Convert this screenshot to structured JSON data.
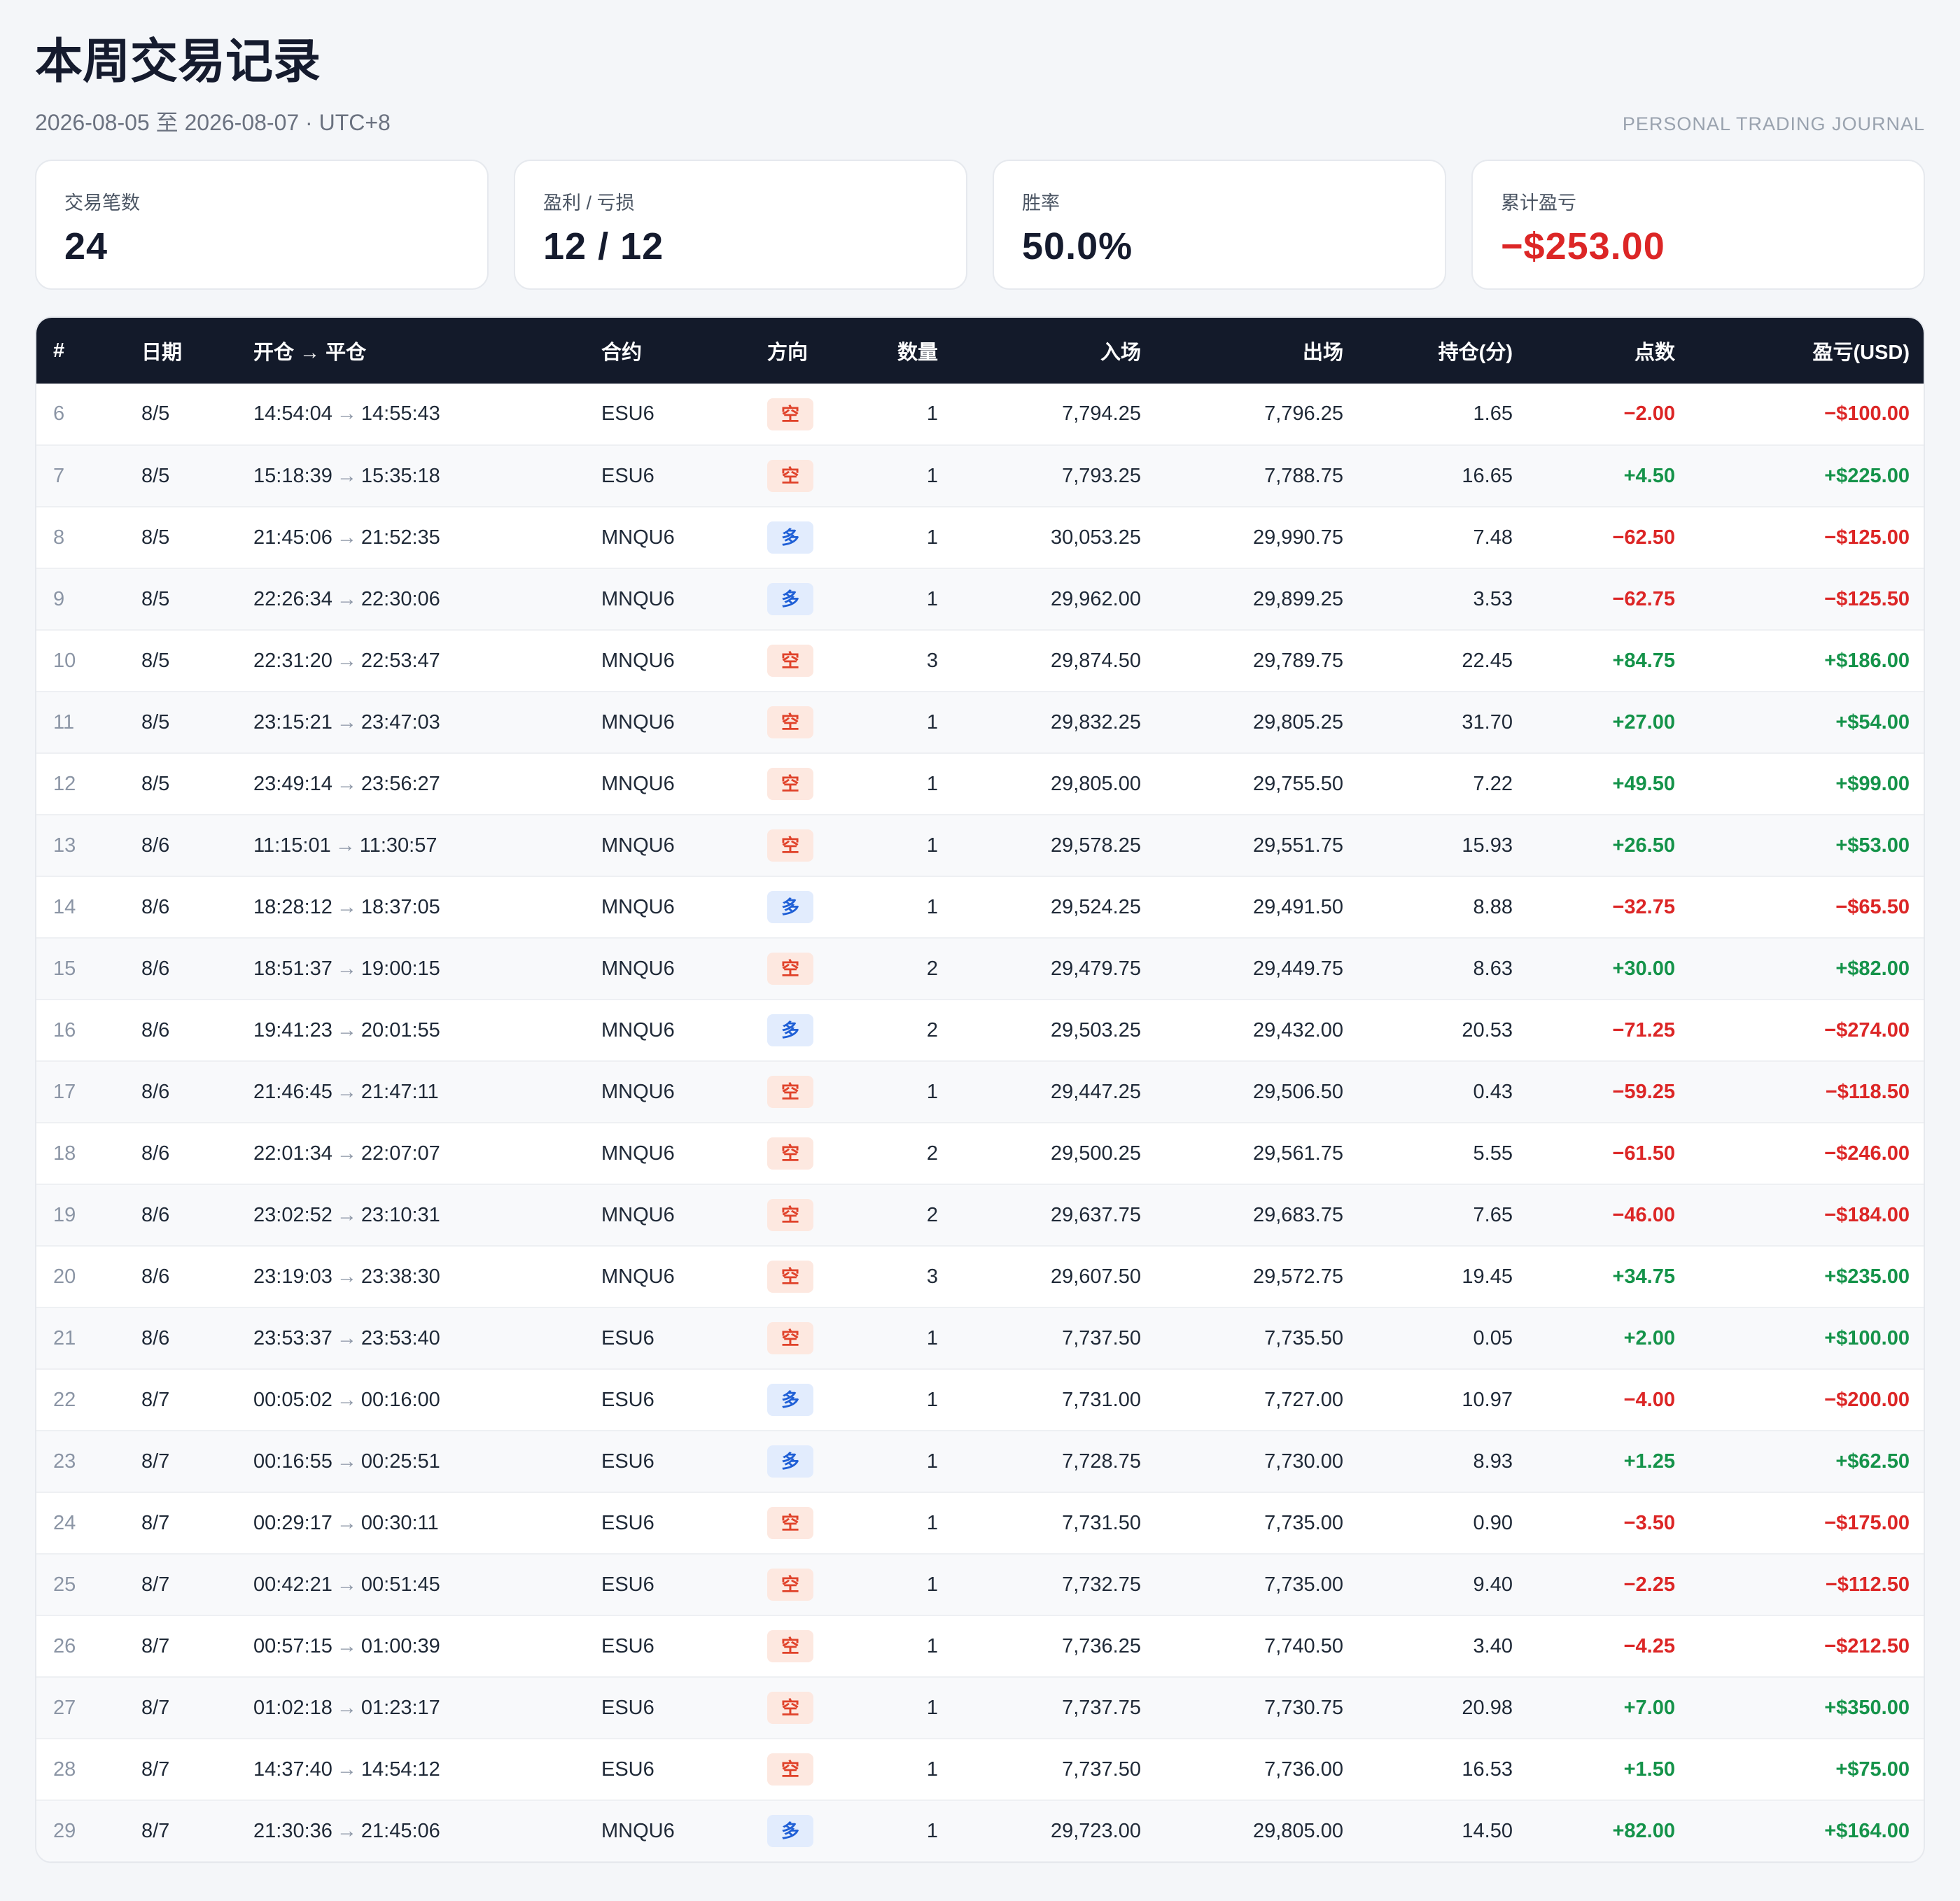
{
  "header": {
    "title": "本周交易记录",
    "subtitle": "2026-08-05 至 2026-08-07 · UTC+8",
    "brand": "PERSONAL TRADING JOURNAL"
  },
  "stats": [
    {
      "label": "交易笔数",
      "value": "24"
    },
    {
      "label": "盈利 / 亏损",
      "value": "12 / 12"
    },
    {
      "label": "胜率",
      "value": "50.0%"
    },
    {
      "label": "累计盈亏",
      "value": "−$253.00"
    }
  ],
  "colors": {
    "positive": "#15934a",
    "negative": "#dc2626",
    "header_bg": "#131a2a"
  },
  "table": {
    "columns": [
      "#",
      "日期",
      "开仓 → 平仓",
      "合约",
      "方向",
      "数量",
      "入场",
      "出场",
      "持仓(分)",
      "点数",
      "盈亏(USD)"
    ],
    "arrow": "→",
    "rows": [
      {
        "id": "6",
        "date": "8/5",
        "open": "14:54:04",
        "close": "14:55:43",
        "symbol": "ESU6",
        "side": "空",
        "qty": "1",
        "entry": "7,794.25",
        "exit": "7,796.25",
        "hold": "1.65",
        "points": "−2.00",
        "pnl": "−$100.00"
      },
      {
        "id": "7",
        "date": "8/5",
        "open": "15:18:39",
        "close": "15:35:18",
        "symbol": "ESU6",
        "side": "空",
        "qty": "1",
        "entry": "7,793.25",
        "exit": "7,788.75",
        "hold": "16.65",
        "points": "+4.50",
        "pnl": "+$225.00"
      },
      {
        "id": "8",
        "date": "8/5",
        "open": "21:45:06",
        "close": "21:52:35",
        "symbol": "MNQU6",
        "side": "多",
        "qty": "1",
        "entry": "30,053.25",
        "exit": "29,990.75",
        "hold": "7.48",
        "points": "−62.50",
        "pnl": "−$125.00"
      },
      {
        "id": "9",
        "date": "8/5",
        "open": "22:26:34",
        "close": "22:30:06",
        "symbol": "MNQU6",
        "side": "多",
        "qty": "1",
        "entry": "29,962.00",
        "exit": "29,899.25",
        "hold": "3.53",
        "points": "−62.75",
        "pnl": "−$125.50"
      },
      {
        "id": "10",
        "date": "8/5",
        "open": "22:31:20",
        "close": "22:53:47",
        "symbol": "MNQU6",
        "side": "空",
        "qty": "3",
        "entry": "29,874.50",
        "exit": "29,789.75",
        "hold": "22.45",
        "points": "+84.75",
        "pnl": "+$186.00"
      },
      {
        "id": "11",
        "date": "8/5",
        "open": "23:15:21",
        "close": "23:47:03",
        "symbol": "MNQU6",
        "side": "空",
        "qty": "1",
        "entry": "29,832.25",
        "exit": "29,805.25",
        "hold": "31.70",
        "points": "+27.00",
        "pnl": "+$54.00"
      },
      {
        "id": "12",
        "date": "8/5",
        "open": "23:49:14",
        "close": "23:56:27",
        "symbol": "MNQU6",
        "side": "空",
        "qty": "1",
        "entry": "29,805.00",
        "exit": "29,755.50",
        "hold": "7.22",
        "points": "+49.50",
        "pnl": "+$99.00"
      },
      {
        "id": "13",
        "date": "8/6",
        "open": "11:15:01",
        "close": "11:30:57",
        "symbol": "MNQU6",
        "side": "空",
        "qty": "1",
        "entry": "29,578.25",
        "exit": "29,551.75",
        "hold": "15.93",
        "points": "+26.50",
        "pnl": "+$53.00"
      },
      {
        "id": "14",
        "date": "8/6",
        "open": "18:28:12",
        "close": "18:37:05",
        "symbol": "MNQU6",
        "side": "多",
        "qty": "1",
        "entry": "29,524.25",
        "exit": "29,491.50",
        "hold": "8.88",
        "points": "−32.75",
        "pnl": "−$65.50"
      },
      {
        "id": "15",
        "date": "8/6",
        "open": "18:51:37",
        "close": "19:00:15",
        "symbol": "MNQU6",
        "side": "空",
        "qty": "2",
        "entry": "29,479.75",
        "exit": "29,449.75",
        "hold": "8.63",
        "points": "+30.00",
        "pnl": "+$82.00"
      },
      {
        "id": "16",
        "date": "8/6",
        "open": "19:41:23",
        "close": "20:01:55",
        "symbol": "MNQU6",
        "side": "多",
        "qty": "2",
        "entry": "29,503.25",
        "exit": "29,432.00",
        "hold": "20.53",
        "points": "−71.25",
        "pnl": "−$274.00"
      },
      {
        "id": "17",
        "date": "8/6",
        "open": "21:46:45",
        "close": "21:47:11",
        "symbol": "MNQU6",
        "side": "空",
        "qty": "1",
        "entry": "29,447.25",
        "exit": "29,506.50",
        "hold": "0.43",
        "points": "−59.25",
        "pnl": "−$118.50"
      },
      {
        "id": "18",
        "date": "8/6",
        "open": "22:01:34",
        "close": "22:07:07",
        "symbol": "MNQU6",
        "side": "空",
        "qty": "2",
        "entry": "29,500.25",
        "exit": "29,561.75",
        "hold": "5.55",
        "points": "−61.50",
        "pnl": "−$246.00"
      },
      {
        "id": "19",
        "date": "8/6",
        "open": "23:02:52",
        "close": "23:10:31",
        "symbol": "MNQU6",
        "side": "空",
        "qty": "2",
        "entry": "29,637.75",
        "exit": "29,683.75",
        "hold": "7.65",
        "points": "−46.00",
        "pnl": "−$184.00"
      },
      {
        "id": "20",
        "date": "8/6",
        "open": "23:19:03",
        "close": "23:38:30",
        "symbol": "MNQU6",
        "side": "空",
        "qty": "3",
        "entry": "29,607.50",
        "exit": "29,572.75",
        "hold": "19.45",
        "points": "+34.75",
        "pnl": "+$235.00"
      },
      {
        "id": "21",
        "date": "8/6",
        "open": "23:53:37",
        "close": "23:53:40",
        "symbol": "ESU6",
        "side": "空",
        "qty": "1",
        "entry": "7,737.50",
        "exit": "7,735.50",
        "hold": "0.05",
        "points": "+2.00",
        "pnl": "+$100.00"
      },
      {
        "id": "22",
        "date": "8/7",
        "open": "00:05:02",
        "close": "00:16:00",
        "symbol": "ESU6",
        "side": "多",
        "qty": "1",
        "entry": "7,731.00",
        "exit": "7,727.00",
        "hold": "10.97",
        "points": "−4.00",
        "pnl": "−$200.00"
      },
      {
        "id": "23",
        "date": "8/7",
        "open": "00:16:55",
        "close": "00:25:51",
        "symbol": "ESU6",
        "side": "多",
        "qty": "1",
        "entry": "7,728.75",
        "exit": "7,730.00",
        "hold": "8.93",
        "points": "+1.25",
        "pnl": "+$62.50"
      },
      {
        "id": "24",
        "date": "8/7",
        "open": "00:29:17",
        "close": "00:30:11",
        "symbol": "ESU6",
        "side": "空",
        "qty": "1",
        "entry": "7,731.50",
        "exit": "7,735.00",
        "hold": "0.90",
        "points": "−3.50",
        "pnl": "−$175.00"
      },
      {
        "id": "25",
        "date": "8/7",
        "open": "00:42:21",
        "close": "00:51:45",
        "symbol": "ESU6",
        "side": "空",
        "qty": "1",
        "entry": "7,732.75",
        "exit": "7,735.00",
        "hold": "9.40",
        "points": "−2.25",
        "pnl": "−$112.50"
      },
      {
        "id": "26",
        "date": "8/7",
        "open": "00:57:15",
        "close": "01:00:39",
        "symbol": "ESU6",
        "side": "空",
        "qty": "1",
        "entry": "7,736.25",
        "exit": "7,740.50",
        "hold": "3.40",
        "points": "−4.25",
        "pnl": "−$212.50"
      },
      {
        "id": "27",
        "date": "8/7",
        "open": "01:02:18",
        "close": "01:23:17",
        "symbol": "ESU6",
        "side": "空",
        "qty": "1",
        "entry": "7,737.75",
        "exit": "7,730.75",
        "hold": "20.98",
        "points": "+7.00",
        "pnl": "+$350.00"
      },
      {
        "id": "28",
        "date": "8/7",
        "open": "14:37:40",
        "close": "14:54:12",
        "symbol": "ESU6",
        "side": "空",
        "qty": "1",
        "entry": "7,737.50",
        "exit": "7,736.00",
        "hold": "16.53",
        "points": "+1.50",
        "pnl": "+$75.00"
      },
      {
        "id": "29",
        "date": "8/7",
        "open": "21:30:36",
        "close": "21:45:06",
        "symbol": "MNQU6",
        "side": "多",
        "qty": "1",
        "entry": "29,723.00",
        "exit": "29,805.00",
        "hold": "14.50",
        "points": "+82.00",
        "pnl": "+$164.00"
      }
    ]
  }
}
